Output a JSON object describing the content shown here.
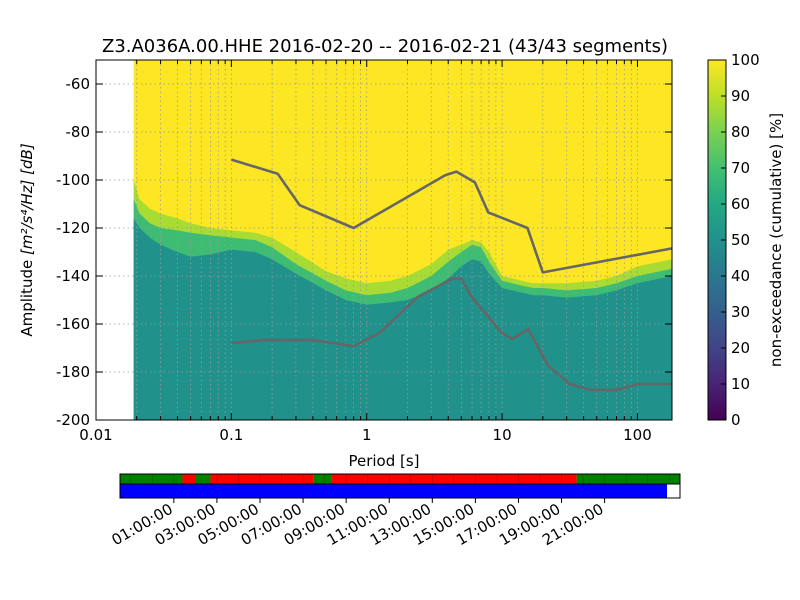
{
  "chart_data": [
    {
      "type": "heatmap",
      "title": "Z3.A036A.00.HHE   2016-02-20 -- 2016-02-21  (43/43 segments)",
      "xlabel": "Period [s]",
      "ylabel_prefix": "Amplitude",
      "ylabel_units": "[m²/s⁴/Hz] [dB]",
      "x_scale": "log",
      "xlim": [
        0.01,
        180
      ],
      "ylim": [
        -200,
        -50
      ],
      "x_ticks": [
        0.01,
        0.1,
        1,
        10,
        100
      ],
      "x_tick_labels": [
        "0.01",
        "0.1",
        "1",
        "10",
        "100"
      ],
      "y_ticks": [
        -200,
        -180,
        -160,
        -140,
        -120,
        -100,
        -80,
        -60
      ],
      "y_tick_labels": [
        "-200",
        "-180",
        "-160",
        "-140",
        "-120",
        "-100",
        "-80",
        "-60"
      ],
      "grid": true,
      "data_period_start": 0.019,
      "colorbar": {
        "label": "non-exceedance (cumulative) [%]",
        "range": [
          0,
          100
        ],
        "ticks": [
          0,
          10,
          20,
          30,
          40,
          50,
          60,
          70,
          80,
          90,
          100
        ],
        "tick_labels": [
          "0",
          "10",
          "20",
          "30",
          "40",
          "50",
          "60",
          "70",
          "80",
          "90",
          "100"
        ],
        "colormap": "viridis"
      },
      "ppsd_boundaries": {
        "period": [
          0.019,
          0.021,
          0.025,
          0.03,
          0.04,
          0.05,
          0.07,
          0.1,
          0.15,
          0.2,
          0.3,
          0.5,
          0.7,
          1,
          1.5,
          2,
          3,
          4,
          5,
          6,
          7,
          8,
          10,
          14,
          17,
          20,
          30,
          50,
          70,
          100,
          180
        ],
        "p50": [
          -116,
          -120,
          -124,
          -127,
          -130,
          -132,
          -131,
          -129,
          -130,
          -133,
          -139,
          -146,
          -150,
          -152,
          -151,
          -150,
          -146,
          -141,
          -136,
          -133,
          -134,
          -139,
          -145,
          -147,
          -148,
          -148,
          -149,
          -148,
          -146,
          -143,
          -140
        ],
        "p75": [
          -108,
          -114,
          -118,
          -120,
          -121,
          -122,
          -123,
          -124,
          -125,
          -128,
          -135,
          -142,
          -146,
          -148,
          -147,
          -145,
          -140,
          -134,
          -130,
          -127,
          -128,
          -134,
          -142,
          -144,
          -145,
          -145,
          -146,
          -145,
          -143,
          -140,
          -137
        ],
        "p100": [
          -100,
          -108,
          -112,
          -114,
          -116,
          -118,
          -120,
          -121,
          -122,
          -124,
          -130,
          -138,
          -141,
          -143,
          -142,
          -140,
          -135,
          -129,
          -127,
          -125,
          -126,
          -130,
          -140,
          -142,
          -143,
          -143,
          -143,
          -142,
          -140,
          -136,
          -133
        ]
      },
      "noise_models": [
        {
          "name": "high noise model",
          "x": [
            0.1,
            0.22,
            0.32,
            0.8,
            3.8,
            4.6,
            6.3,
            7.9,
            15.4,
            20,
            180
          ],
          "y": [
            -91.5,
            -97.4,
            -110.5,
            -120,
            -98,
            -96.5,
            -101,
            -113.5,
            -120,
            -138.5,
            -128.5
          ]
        },
        {
          "name": "low noise model",
          "x": [
            0.1,
            0.17,
            0.4,
            0.8,
            1.24,
            2.4,
            4.3,
            5,
            6,
            10,
            12,
            15.6,
            21.9,
            31.6,
            45,
            70,
            101,
            180
          ],
          "y": [
            -168,
            -166.7,
            -166.7,
            -169.2,
            -163.7,
            -148.6,
            -141.1,
            -141.1,
            -149,
            -163.8,
            -166.2,
            -162.1,
            -177.5,
            -185,
            -187.5,
            -187.5,
            -185,
            -185
          ]
        }
      ],
      "colors": {
        "above": "#fde725",
        "band_90": "#a8db34",
        "band_80": "#5ec962",
        "band_70": "#3fbc73",
        "below": "#21918c",
        "noise_model": "#666666"
      }
    },
    {
      "type": "timeline",
      "time_ticks": [
        "01:00:00",
        "03:00:00",
        "05:00:00",
        "07:00:00",
        "09:00:00",
        "11:00:00",
        "13:00:00",
        "15:00:00",
        "17:00:00",
        "19:00:00",
        "21:00:00"
      ],
      "time_tick_hours": [
        1,
        3,
        5,
        7,
        9,
        11,
        13,
        15,
        17,
        19,
        21
      ],
      "hours_span": [
        -1.5,
        24.5
      ],
      "top_track": [
        {
          "start": -1.5,
          "end": 1.4,
          "status": "ok"
        },
        {
          "start": 1.4,
          "end": 2.0,
          "status": "bad"
        },
        {
          "start": 2.0,
          "end": 2.7,
          "status": "ok"
        },
        {
          "start": 2.7,
          "end": 7.5,
          "status": "bad"
        },
        {
          "start": 7.5,
          "end": 8.3,
          "status": "ok"
        },
        {
          "start": 8.3,
          "end": 19.7,
          "status": "bad"
        },
        {
          "start": 19.7,
          "end": 24.5,
          "status": "ok"
        }
      ],
      "bottom_track": [
        {
          "start": -1.5,
          "end": 23.9,
          "status": "covered"
        },
        {
          "start": 23.9,
          "end": 24.5,
          "status": "empty"
        }
      ],
      "colors": {
        "ok": "#008000",
        "bad": "#ff0000",
        "covered": "#0000ff",
        "empty": "#ffffff"
      }
    }
  ]
}
